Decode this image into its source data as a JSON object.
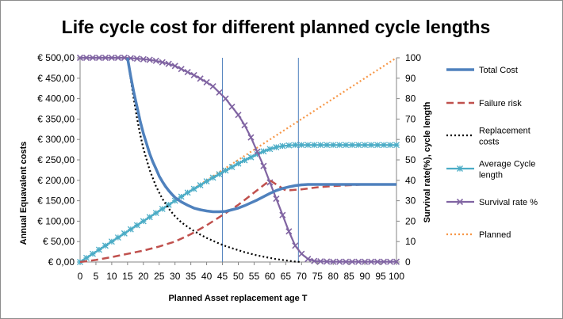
{
  "chart_data": {
    "type": "line",
    "title": "Life cycle cost for different planned cycle lengths",
    "xlabel": "Planned Asset replacement age T",
    "ylabel": "Annual Equavalent costs",
    "ylabel2": "Survival rate(%), cycle length",
    "xlim": [
      0,
      100
    ],
    "ylim": [
      0,
      500
    ],
    "ylim2": [
      0,
      100
    ],
    "x_ticks": [
      0,
      5,
      10,
      15,
      20,
      25,
      30,
      35,
      40,
      45,
      50,
      55,
      60,
      65,
      70,
      75,
      80,
      85,
      90,
      95,
      100
    ],
    "y_ticks": [
      "€ 0,00",
      "€ 50,00",
      "€ 100,00",
      "€ 150,00",
      "€ 200,00",
      "€ 250,00",
      "€ 300,00",
      "€ 350,00",
      "€ 400,00",
      "€ 450,00",
      "€ 500,00"
    ],
    "y_tick_values": [
      0,
      50,
      100,
      150,
      200,
      250,
      300,
      350,
      400,
      450,
      500
    ],
    "y2_ticks": [
      0,
      10,
      20,
      30,
      40,
      50,
      60,
      70,
      80,
      90,
      100
    ],
    "vlines": [
      45,
      69
    ],
    "gridlines": "none",
    "legend_position": "right",
    "series": [
      {
        "name": "Total Cost",
        "axis": "left",
        "color": "#4f81bd",
        "style": "solid-thick",
        "x": [
          15,
          16,
          17,
          18,
          19,
          20,
          21,
          22,
          23,
          24,
          25,
          26,
          27,
          28,
          29,
          30,
          32,
          34,
          36,
          38,
          40,
          42,
          44,
          46,
          48,
          50,
          52,
          54,
          56,
          58,
          60,
          62,
          64,
          66,
          68,
          70,
          72,
          74,
          76,
          78,
          80,
          85,
          90,
          95,
          100
        ],
        "y": [
          500,
          455,
          415,
          380,
          345,
          315,
          290,
          265,
          245,
          228,
          210,
          197,
          185,
          175,
          166,
          158,
          147,
          139,
          132,
          128,
          125,
          123,
          123,
          124,
          128,
          132,
          138,
          145,
          152,
          160,
          168,
          175,
          180,
          184,
          187,
          189,
          190,
          190,
          190,
          190,
          190,
          190,
          190,
          190,
          190
        ]
      },
      {
        "name": "Failure risk",
        "axis": "left",
        "color": "#c0504d",
        "style": "dashed",
        "x": [
          0,
          5,
          10,
          15,
          20,
          25,
          30,
          35,
          40,
          45,
          50,
          55,
          60,
          65,
          70,
          75,
          80,
          85,
          90,
          95,
          100
        ],
        "y": [
          0,
          5,
          12,
          20,
          28,
          38,
          50,
          68,
          90,
          115,
          140,
          170,
          200,
          175,
          178,
          183,
          186,
          188,
          190,
          190,
          190
        ]
      },
      {
        "name": "Replacement costs",
        "axis": "left",
        "color": "#000000",
        "style": "dotted",
        "x": [
          15,
          16,
          17,
          18,
          19,
          20,
          22,
          24,
          26,
          28,
          30,
          32,
          34,
          36,
          38,
          40,
          42,
          44,
          46,
          48,
          50,
          52,
          54,
          56,
          58,
          60,
          62,
          64,
          66,
          68,
          70
        ],
        "y": [
          500,
          448,
          398,
          352,
          312,
          278,
          225,
          185,
          155,
          131,
          112,
          97,
          86,
          76,
          67,
          59,
          52,
          45,
          39,
          34,
          29,
          24,
          20,
          16,
          13,
          10,
          7,
          5,
          3,
          1,
          0
        ]
      },
      {
        "name": "Average Cycle length",
        "axis": "right",
        "color": "#4bacc6",
        "style": "marker-star",
        "x": [
          0,
          2,
          4,
          6,
          8,
          10,
          12,
          14,
          16,
          18,
          20,
          22,
          24,
          26,
          28,
          30,
          32,
          34,
          36,
          38,
          40,
          42,
          44,
          46,
          48,
          50,
          52,
          54,
          56,
          58,
          60,
          62,
          64,
          66,
          68,
          70,
          72,
          74,
          76,
          78,
          80,
          82,
          84,
          86,
          88,
          90,
          92,
          94,
          96,
          98,
          100
        ],
        "y": [
          0,
          2,
          4,
          6,
          8,
          10,
          12,
          14,
          16,
          18,
          20,
          22,
          24,
          26,
          28,
          30,
          32,
          34,
          35.8,
          37.6,
          39.5,
          41.3,
          43,
          44.8,
          46.5,
          48.2,
          49.8,
          51.3,
          52.8,
          54.2,
          55.3,
          56.2,
          56.8,
          57.1,
          57.3,
          57.3,
          57.3,
          57.3,
          57.3,
          57.3,
          57.3,
          57.3,
          57.3,
          57.3,
          57.3,
          57.3,
          57.3,
          57.3,
          57.3,
          57.3,
          57.3
        ]
      },
      {
        "name": "Survival rate %",
        "axis": "right",
        "color": "#8064a2",
        "style": "marker-x",
        "x": [
          0,
          2,
          4,
          6,
          8,
          10,
          12,
          14,
          16,
          18,
          20,
          22,
          24,
          26,
          28,
          30,
          32,
          34,
          36,
          38,
          40,
          42,
          44,
          46,
          48,
          50,
          52,
          54,
          56,
          58,
          60,
          62,
          64,
          66,
          68,
          70,
          72,
          74,
          76,
          78,
          80,
          82,
          84,
          86,
          88,
          90,
          92,
          94,
          96,
          98,
          100
        ],
        "y": [
          100,
          100,
          100,
          100,
          100,
          100,
          100,
          100,
          99.8,
          99.6,
          99.3,
          99,
          98.5,
          97.8,
          97,
          96,
          94.5,
          93,
          91.5,
          89.8,
          88,
          86,
          83,
          80,
          76,
          72,
          67,
          61,
          54,
          47,
          39,
          31,
          23,
          15,
          8,
          4,
          1.5,
          0.5,
          0.3,
          0.2,
          0.1,
          0.1,
          0.1,
          0.1,
          0.1,
          0.1,
          0.1,
          0.1,
          0.1,
          0.1,
          0.1
        ]
      },
      {
        "name": "Planned",
        "axis": "right",
        "color": "#f79646",
        "style": "dotted",
        "x": [
          0,
          100
        ],
        "y": [
          0,
          100
        ]
      }
    ]
  }
}
